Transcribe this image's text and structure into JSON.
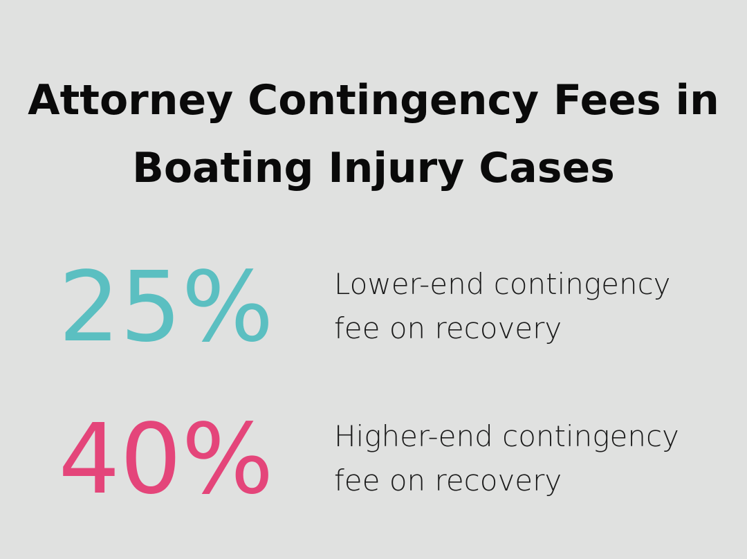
{
  "title": "Attorney Contingency Fees in Boating Injury Cases",
  "stats": [
    {
      "value": "25%",
      "label": "Lower-end contingency fee on recovery",
      "color": "#5bbfc1"
    },
    {
      "value": "40%",
      "label": "Higher-end contingency fee on recovery",
      "color": "#e4457a"
    }
  ]
}
